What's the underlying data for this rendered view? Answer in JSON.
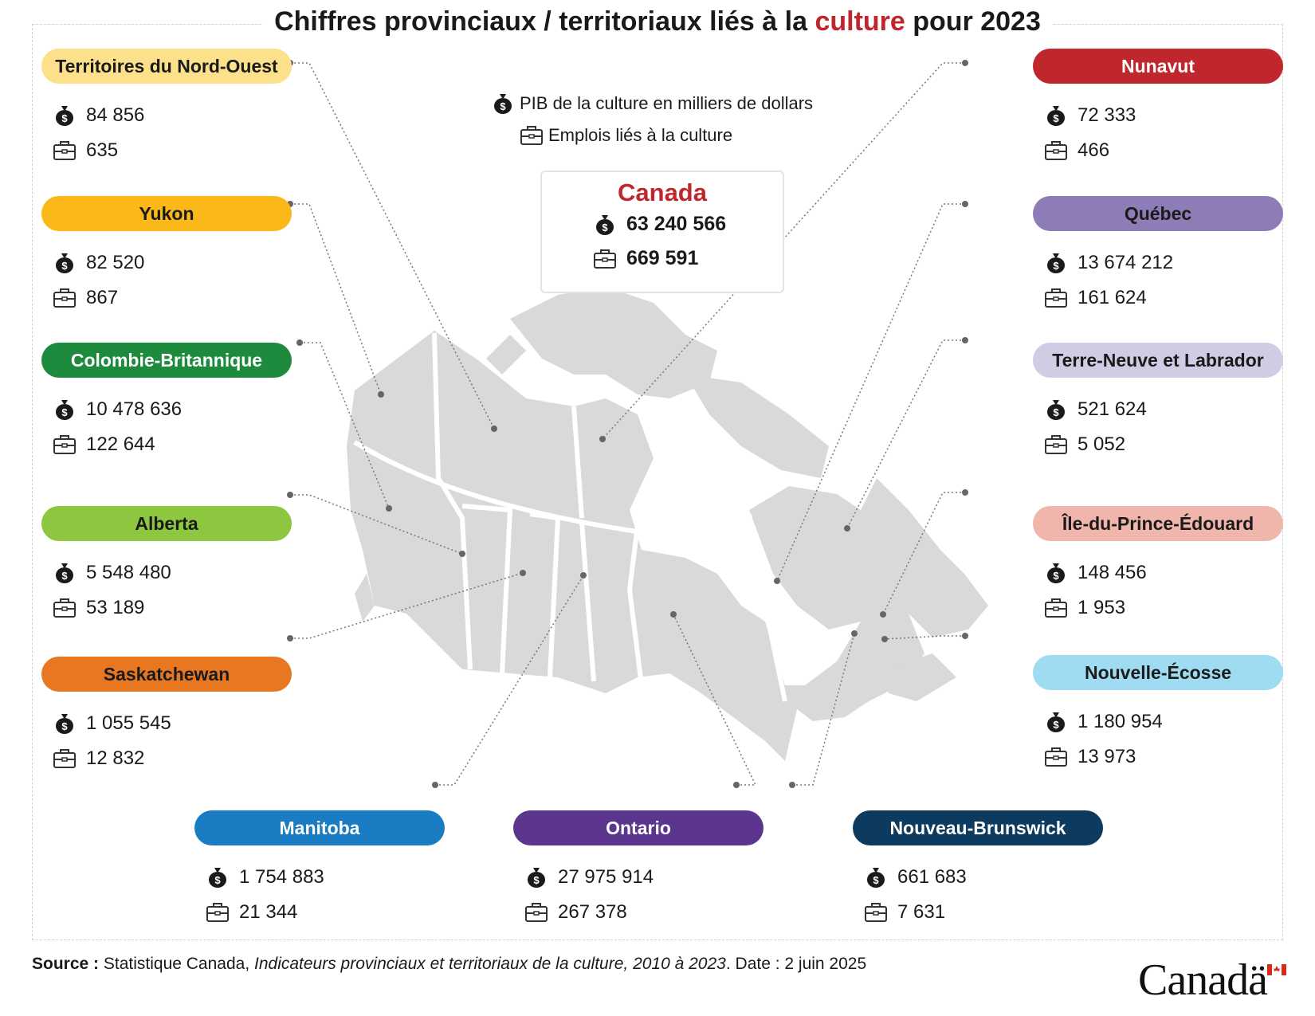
{
  "title": {
    "before": "Chiffres provinciaux / territoriaux liés à la ",
    "accent": "culture",
    "after": " pour 2023"
  },
  "colors": {
    "accent": "#c0272d",
    "map_fill": "#d9d9d9",
    "leader": "#777777"
  },
  "legend": {
    "gdp": {
      "icon": "money-bag-icon",
      "label": "PIB de la culture en milliers de dollars"
    },
    "jobs": {
      "icon": "briefcase-icon",
      "label": "Emplois liés à la culture"
    }
  },
  "canada": {
    "name": "Canada",
    "gdp": "63 240 566",
    "jobs": "669 591"
  },
  "regions": [
    {
      "name": "Territoires du Nord-Ouest",
      "gdp": "84 856",
      "jobs": "635",
      "color": "#fde08a",
      "text_color": "#1a1a1a"
    },
    {
      "name": "Yukon",
      "gdp": "82 520",
      "jobs": "867",
      "color": "#fbb919",
      "text_color": "#1a1a1a"
    },
    {
      "name": "Colombie-Britannique",
      "gdp": "10 478 636",
      "jobs": "122 644",
      "color": "#1e8a3e",
      "text_color": "#ffffff"
    },
    {
      "name": "Alberta",
      "gdp": "5 548 480",
      "jobs": "53 189",
      "color": "#8dc63f",
      "text_color": "#1a1a1a"
    },
    {
      "name": "Saskatchewan",
      "gdp": "1 055 545",
      "jobs": "12 832",
      "color": "#e87722",
      "text_color": "#1a1a1a"
    },
    {
      "name": "Nunavut",
      "gdp": "72 333",
      "jobs": "466",
      "color": "#c0272d",
      "text_color": "#ffffff"
    },
    {
      "name": "Québec",
      "gdp": "13 674 212",
      "jobs": "161 624",
      "color": "#8e7cb7",
      "text_color": "#1a1a1a"
    },
    {
      "name": "Terre-Neuve et Labrador",
      "gdp": "521 624",
      "jobs": "5 052",
      "color": "#d1cbe3",
      "text_color": "#1a1a1a"
    },
    {
      "name": "Île-du-Prince-Édouard",
      "gdp": "148 456",
      "jobs": "1 953",
      "color": "#f0b5ab",
      "text_color": "#1a1a1a"
    },
    {
      "name": "Nouvelle-Écosse",
      "gdp": "1 180 954",
      "jobs": "13 973",
      "color": "#9fdcf2",
      "text_color": "#1a1a1a"
    },
    {
      "name": "Manitoba",
      "gdp": "1 754 883",
      "jobs": "21 344",
      "color": "#1a7dc4",
      "text_color": "#ffffff"
    },
    {
      "name": "Ontario",
      "gdp": "27 975 914",
      "jobs": "267 378",
      "color": "#5b358e",
      "text_color": "#ffffff"
    },
    {
      "name": "Nouveau-Brunswick",
      "gdp": "661 683",
      "jobs": "7 631",
      "color": "#0d3b5f",
      "text_color": "#ffffff"
    }
  ],
  "source": {
    "label": "Source :",
    "text": " Statistique Canada, ",
    "italic": "Indicateurs provinciaux et territoriaux de la culture, 2010 à 2023",
    "after": ". Date : 2 juin 2025"
  },
  "wordmark": "Canadä"
}
